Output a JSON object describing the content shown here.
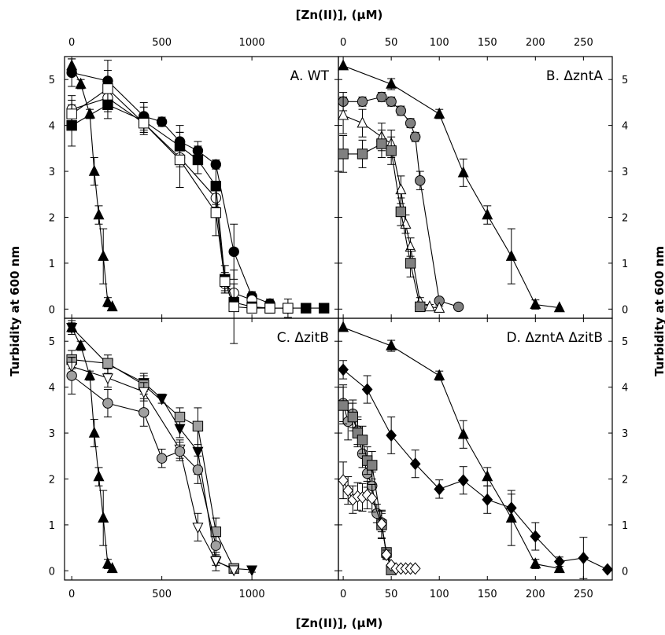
{
  "chart_data": {
    "type": "line",
    "x_axis_title": "[Zn(II)], (μM)",
    "y_axis_title": "Turbidity at 600 nm",
    "ylim": [
      -0.2,
      5.5
    ],
    "y_ticks": [
      0,
      1,
      2,
      3,
      4,
      5
    ],
    "panels": [
      {
        "id": "A",
        "label": "A. WT",
        "xlim": [
          -40,
          1480
        ],
        "x_ticks": [
          0,
          500,
          1000
        ],
        "series": [
          {
            "marker": "triangle-up",
            "fill": "#000000",
            "x": [
              0,
              50,
              100,
              125,
              150,
              175,
              200,
              225
            ],
            "y": [
              5.3,
              4.9,
              4.25,
              3.0,
              2.05,
              1.15,
              0.15,
              0.05
            ],
            "err": [
              0.15,
              0.1,
              0.1,
              0.3,
              0.2,
              0.6,
              0.1,
              0
            ]
          },
          {
            "marker": "circle",
            "fill": "#000000",
            "x": [
              0,
              200,
              400,
              500,
              600,
              700,
              800,
              900,
              1000,
              1100
            ],
            "y": [
              5.15,
              4.97,
              4.2,
              4.08,
              3.65,
              3.45,
              3.15,
              1.25,
              0.28,
              0.12
            ],
            "err": [
              0.3,
              0.45,
              0.3,
              0.1,
              0.35,
              0.2,
              0.1,
              0.6,
              0.1,
              0.1
            ]
          },
          {
            "marker": "circle",
            "fill": "#ffffff",
            "x": [
              0,
              200,
              400,
              600,
              800,
              850,
              900,
              1000
            ],
            "y": [
              4.35,
              4.6,
              4.05,
              3.3,
              2.42,
              0.55,
              0.35,
              0.2
            ],
            "err": [
              0.3,
              0.3,
              0.2,
              0.2,
              0.2,
              0.2,
              0.2,
              0.1
            ]
          },
          {
            "marker": "square",
            "fill": "#000000",
            "x": [
              0,
              200,
              400,
              600,
              700,
              800,
              850,
              900,
              1000,
              1100,
              1200,
              1300,
              1400
            ],
            "y": [
              4.0,
              4.45,
              4.1,
              3.55,
              3.25,
              2.68,
              0.65,
              0.15,
              0.05,
              0.02,
              0.02,
              0.02,
              0.02
            ],
            "err": [
              0.45,
              0.3,
              0.3,
              0.3,
              0.3,
              0.4,
              0.3,
              0.1,
              0.05,
              0.05,
              0.05,
              0.05,
              0.05
            ]
          },
          {
            "marker": "square",
            "fill": "#ffffff",
            "x": [
              0,
              200,
              400,
              600,
              800,
              850,
              900,
              1000,
              1100,
              1200
            ],
            "y": [
              4.25,
              4.8,
              4.05,
              3.25,
              2.1,
              0.6,
              0.05,
              0.02,
              0.02,
              0.02
            ],
            "err": [
              0.3,
              0.4,
              0.2,
              0.6,
              0.5,
              0.2,
              0.8,
              0.05,
              0.05,
              0.2
            ]
          }
        ]
      },
      {
        "id": "B",
        "label": "B. ΔzntA",
        "xlim": [
          -5,
          280
        ],
        "x_ticks": [
          0,
          50,
          100,
          150,
          200,
          250
        ],
        "series": [
          {
            "marker": "triangle-up",
            "fill": "#000000",
            "x": [
              0,
              50,
              100,
              125,
              150,
              175,
              200,
              225
            ],
            "y": [
              5.3,
              4.9,
              4.25,
              2.97,
              2.05,
              1.15,
              0.1,
              0.03
            ],
            "err": [
              0,
              0.12,
              0.1,
              0.3,
              0.2,
              0.6,
              0.1,
              0
            ]
          },
          {
            "marker": "circle",
            "fill": "#808080",
            "x": [
              0,
              20,
              40,
              50,
              60,
              70,
              75,
              80,
              100,
              120
            ],
            "y": [
              4.52,
              4.52,
              4.62,
              4.52,
              4.32,
              4.05,
              3.75,
              2.8,
              0.18,
              0.05
            ],
            "err": [
              0.2,
              0.1,
              0.1,
              0.1,
              0.1,
              0.1,
              0.1,
              0.2,
              0.05,
              0.05
            ]
          },
          {
            "marker": "triangle-up",
            "fill": "#ffffff",
            "x": [
              0,
              20,
              40,
              50,
              60,
              65,
              70,
              80,
              90,
              100
            ],
            "y": [
              4.22,
              4.05,
              3.75,
              3.6,
              2.6,
              1.85,
              1.35,
              0.15,
              0.05,
              0.02
            ],
            "err": [
              0.4,
              0.3,
              0.3,
              0.3,
              0.3,
              0.2,
              0.2,
              0.1,
              0.05,
              0.05
            ]
          },
          {
            "marker": "square",
            "fill": "#808080",
            "x": [
              0,
              20,
              40,
              50,
              60,
              70,
              80
            ],
            "y": [
              3.38,
              3.38,
              3.6,
              3.45,
              2.12,
              1.0,
              0.05
            ],
            "err": [
              0.4,
              0.3,
              0.3,
              0.3,
              0.3,
              0.3,
              0.05
            ]
          }
        ]
      },
      {
        "id": "C",
        "label": "C. ΔzitB",
        "xlim": [
          -40,
          1480
        ],
        "x_ticks": [
          0,
          500,
          1000
        ],
        "series": [
          {
            "marker": "triangle-up",
            "fill": "#000000",
            "x": [
              0,
              50,
              100,
              125,
              150,
              175,
              200,
              225
            ],
            "y": [
              5.3,
              4.9,
              4.25,
              3.0,
              2.05,
              1.15,
              0.15,
              0.05
            ],
            "err": [
              0.15,
              0.1,
              0.1,
              0.3,
              0.2,
              0.6,
              0.1,
              0
            ]
          },
          {
            "marker": "triangle-down",
            "fill": "#000000",
            "x": [
              0,
              200,
              400,
              500,
              600,
              700,
              800,
              900,
              1000
            ],
            "y": [
              5.3,
              4.5,
              4.1,
              3.75,
              3.1,
              2.6,
              0.2,
              0.05,
              0.02
            ],
            "err": [
              0.1,
              0.2,
              0.2,
              0.1,
              0.2,
              0.5,
              0.2,
              0.05,
              0.05
            ]
          },
          {
            "marker": "square",
            "fill": "#a0a0a0",
            "x": [
              0,
              200,
              400,
              600,
              700,
              800,
              900
            ],
            "y": [
              4.6,
              4.52,
              4.05,
              3.35,
              3.15,
              0.85,
              0.05
            ],
            "err": [
              0.2,
              0.1,
              0.2,
              0.2,
              0.4,
              0.3,
              0.05
            ]
          },
          {
            "marker": "triangle-down",
            "fill": "#ffffff",
            "x": [
              0,
              200,
              400,
              600,
              700,
              800,
              900
            ],
            "y": [
              4.45,
              4.2,
              3.9,
              2.65,
              0.95,
              0.22,
              0.02
            ],
            "err": [
              0.2,
              0.2,
              0.2,
              0.2,
              0.3,
              0.1,
              0.05
            ]
          },
          {
            "marker": "circle",
            "fill": "#a0a0a0",
            "x": [
              0,
              200,
              400,
              500,
              600,
              700,
              800
            ],
            "y": [
              4.25,
              3.65,
              3.45,
              2.45,
              2.6,
              2.2,
              0.55
            ],
            "err": [
              0.4,
              0.3,
              0.3,
              0.2,
              0.2,
              0.3,
              0.2
            ]
          }
        ]
      },
      {
        "id": "D",
        "label": "D. ΔzntA ΔzitB",
        "xlim": [
          -5,
          280
        ],
        "x_ticks": [
          0,
          50,
          100,
          150,
          200,
          250
        ],
        "series": [
          {
            "marker": "triangle-up",
            "fill": "#000000",
            "x": [
              0,
              50,
              100,
              125,
              150,
              175,
              200,
              225
            ],
            "y": [
              5.3,
              4.9,
              4.25,
              2.97,
              2.05,
              1.15,
              0.15,
              0.05
            ],
            "err": [
              0,
              0.12,
              0.1,
              0.3,
              0.2,
              0.6,
              0.1,
              0
            ]
          },
          {
            "marker": "diamond",
            "fill": "#000000",
            "x": [
              0,
              25,
              50,
              75,
              100,
              125,
              150,
              175,
              200,
              225,
              250,
              275
            ],
            "y": [
              4.38,
              3.95,
              2.95,
              2.33,
              1.78,
              1.97,
              1.55,
              1.37,
              0.75,
              0.2,
              0.28,
              0.03
            ],
            "err": [
              0.2,
              0.3,
              0.4,
              0.3,
              0.2,
              0.3,
              0.3,
              0.3,
              0.3,
              0.1,
              0.45,
              0.02
            ]
          },
          {
            "marker": "circle",
            "fill": "#a0a0a0",
            "x": [
              0,
              5,
              10,
              15,
              20,
              25,
              30,
              35,
              40,
              45,
              50
            ],
            "y": [
              3.65,
              3.25,
              3.42,
              3.05,
              2.55,
              2.12,
              1.85,
              1.25,
              1.05,
              0.35,
              0.05
            ],
            "err": [
              0.4,
              0.4,
              0.3,
              0.3,
              0.3,
              0.3,
              0.3,
              0.2,
              0.2,
              0.1,
              0.05
            ]
          },
          {
            "marker": "square",
            "fill": "#808080",
            "x": [
              0,
              10,
              15,
              20,
              25,
              30,
              40,
              45,
              50
            ],
            "y": [
              3.6,
              3.35,
              3.0,
              2.85,
              2.4,
              2.3,
              1.0,
              0.4,
              0.02
            ],
            "err": [
              0.4,
              0.3,
              0.3,
              0.3,
              0.3,
              0.3,
              0.3,
              0.1,
              0.05
            ]
          },
          {
            "marker": "diamond",
            "fill": "#ffffff",
            "x": [
              0,
              5,
              10,
              15,
              20,
              25,
              30,
              40,
              45,
              50,
              55,
              60,
              65,
              70,
              75
            ],
            "y": [
              1.97,
              1.75,
              1.55,
              1.62,
              1.6,
              1.65,
              1.58,
              1.02,
              0.35,
              0.12,
              0.05,
              0.05,
              0.05,
              0.05,
              0.05
            ],
            "err": [
              0.4,
              0.3,
              0.3,
              0.3,
              0.3,
              0.3,
              0.3,
              0.3,
              0.1,
              0.05,
              0.03,
              0.03,
              0.03,
              0.03,
              0.03
            ]
          }
        ]
      }
    ]
  }
}
